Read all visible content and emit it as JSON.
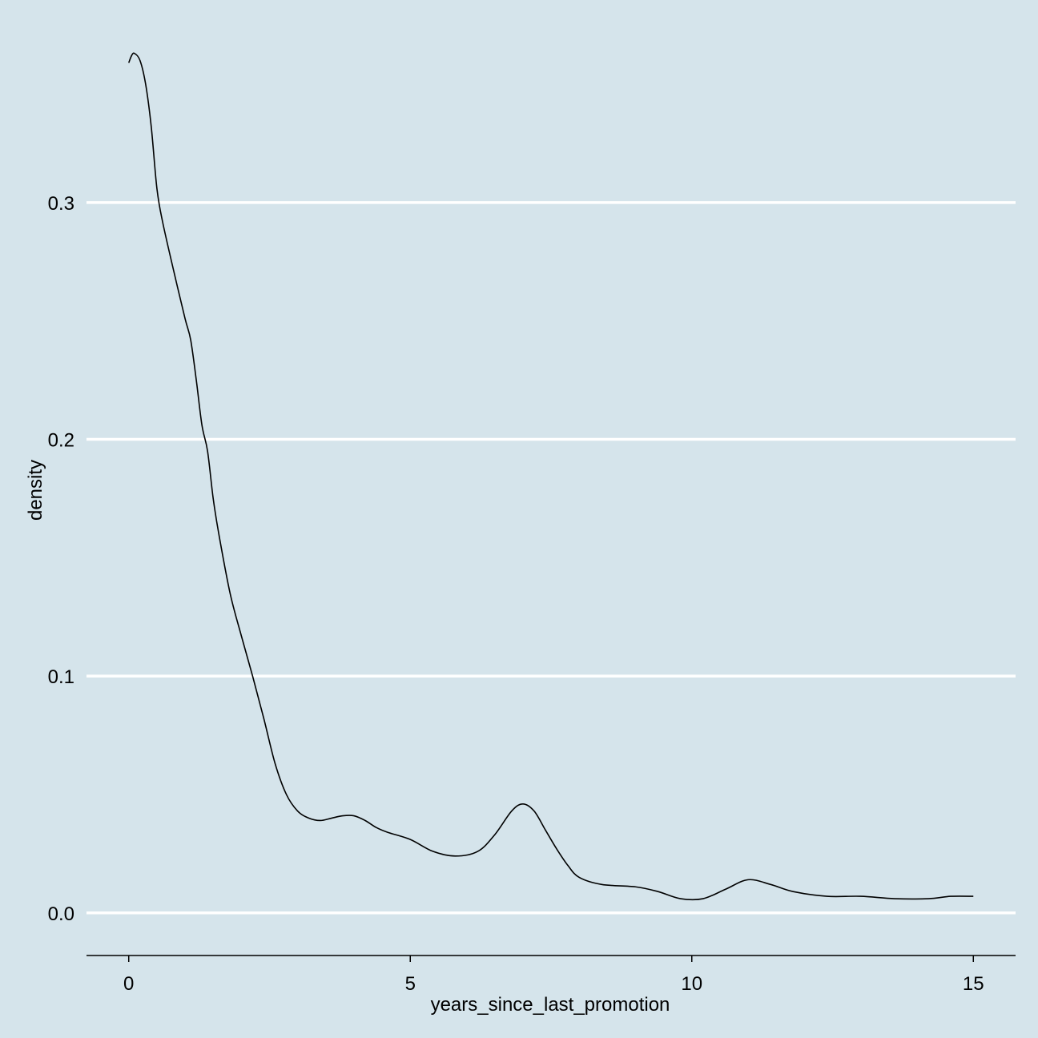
{
  "chart_data": {
    "type": "line",
    "xlabel": "years_since_last_promotion",
    "ylabel": "density",
    "xlim": [
      -0.75,
      15.75
    ],
    "ylim": [
      -0.018,
      0.372
    ],
    "x_ticks": [
      0,
      5,
      10,
      15
    ],
    "x_tick_labels": [
      "0",
      "5",
      "10",
      "15"
    ],
    "y_ticks": [
      0.0,
      0.1,
      0.2,
      0.3
    ],
    "y_tick_labels": [
      "0.0",
      "0.1",
      "0.2",
      "0.3"
    ],
    "grid": "horizontal-major",
    "background_color": "#d5e4eb",
    "grid_color": "#ffffff",
    "line_color": "#000000",
    "series": [
      {
        "x": [
          0,
          0.05,
          0.1,
          0.2,
          0.3,
          0.4,
          0.5,
          0.6,
          0.8,
          1.0,
          1.1,
          1.2,
          1.3,
          1.4,
          1.5,
          1.6,
          1.8,
          2.0,
          2.2,
          2.4,
          2.6,
          2.8,
          3.0,
          3.2,
          3.4,
          3.6,
          3.8,
          4.0,
          4.2,
          4.4,
          4.6,
          5.0,
          5.4,
          5.8,
          6.2,
          6.5,
          6.8,
          7.0,
          7.2,
          7.4,
          7.6,
          7.8,
          8.0,
          8.4,
          9.0,
          9.4,
          9.8,
          10.2,
          10.6,
          11.0,
          11.4,
          11.8,
          12.4,
          13.0,
          13.6,
          14.2,
          14.6,
          15.0
        ],
        "y": [
          0.359,
          0.362,
          0.363,
          0.36,
          0.35,
          0.332,
          0.306,
          0.292,
          0.271,
          0.251,
          0.242,
          0.225,
          0.206,
          0.195,
          0.175,
          0.16,
          0.135,
          0.117,
          0.1,
          0.082,
          0.063,
          0.05,
          0.043,
          0.04,
          0.039,
          0.04,
          0.041,
          0.041,
          0.039,
          0.036,
          0.034,
          0.031,
          0.026,
          0.024,
          0.026,
          0.033,
          0.043,
          0.046,
          0.043,
          0.035,
          0.027,
          0.02,
          0.015,
          0.012,
          0.011,
          0.009,
          0.006,
          0.006,
          0.01,
          0.014,
          0.012,
          0.009,
          0.007,
          0.007,
          0.006,
          0.006,
          0.007,
          0.007
        ]
      }
    ]
  }
}
